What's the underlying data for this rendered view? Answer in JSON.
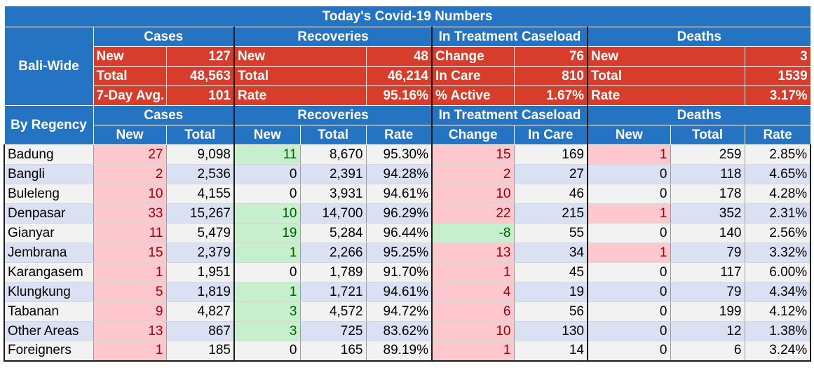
{
  "title": "Today's Covid-19 Numbers",
  "bali_wide": {
    "label": "Bali-Wide",
    "groups": [
      "Cases",
      "Recoveries",
      "In Treatment Caseload",
      "Deaths"
    ],
    "rows": [
      {
        "cases": [
          "New",
          "127"
        ],
        "recoveries": [
          "New",
          "48"
        ],
        "treatment": [
          "Change",
          "76"
        ],
        "deaths": [
          "New",
          "3"
        ]
      },
      {
        "cases": [
          "Total",
          "48,563"
        ],
        "recoveries": [
          "Total",
          "46,214"
        ],
        "treatment": [
          "In Care",
          "810"
        ],
        "deaths": [
          "Total",
          "1539"
        ]
      },
      {
        "cases": [
          "7-Day Avg.",
          "101"
        ],
        "recoveries": [
          "Rate",
          "95.16%"
        ],
        "treatment": [
          "% Active",
          "1.67%"
        ],
        "deaths": [
          "Rate",
          "3.17%"
        ]
      }
    ]
  },
  "by_regency": {
    "label": "By Regency",
    "groups": [
      "Cases",
      "Recoveries",
      "In Treatment Caseload",
      "Deaths"
    ],
    "columns": [
      "New",
      "Total",
      "New",
      "Total",
      "Rate",
      "Change",
      "In Care",
      "New",
      "Total",
      "Rate"
    ],
    "colors": {
      "pink_bg": "#ffc7ce",
      "pink_text": "#9c0006",
      "green_bg": "#c6efce",
      "green_text": "#006100",
      "header_blue": "#2573c3",
      "summary_red": "#d83c2b"
    },
    "rows": [
      {
        "name": "Badung",
        "values": [
          "27",
          "9,098",
          "11",
          "8,670",
          "95.30%",
          "15",
          "169",
          "1",
          "259",
          "2.85%"
        ]
      },
      {
        "name": "Bangli",
        "values": [
          "2",
          "2,536",
          "0",
          "2,391",
          "94.28%",
          "2",
          "27",
          "0",
          "118",
          "4.65%"
        ]
      },
      {
        "name": "Buleleng",
        "values": [
          "10",
          "4,155",
          "0",
          "3,931",
          "94.61%",
          "10",
          "46",
          "0",
          "178",
          "4.28%"
        ]
      },
      {
        "name": "Denpasar",
        "values": [
          "33",
          "15,267",
          "10",
          "14,700",
          "96.29%",
          "22",
          "215",
          "1",
          "352",
          "2.31%"
        ]
      },
      {
        "name": "Gianyar",
        "values": [
          "11",
          "5,479",
          "19",
          "5,284",
          "96.44%",
          "-8",
          "55",
          "0",
          "140",
          "2.56%"
        ]
      },
      {
        "name": "Jembrana",
        "values": [
          "15",
          "2,379",
          "1",
          "2,266",
          "95.25%",
          "13",
          "34",
          "1",
          "79",
          "3.32%"
        ]
      },
      {
        "name": "Karangasem",
        "values": [
          "1",
          "1,951",
          "0",
          "1,789",
          "91.70%",
          "1",
          "45",
          "0",
          "117",
          "6.00%"
        ]
      },
      {
        "name": "Klungkung",
        "values": [
          "5",
          "1,819",
          "1",
          "1,721",
          "94.61%",
          "4",
          "19",
          "0",
          "79",
          "4.34%"
        ]
      },
      {
        "name": "Tabanan",
        "values": [
          "9",
          "4,827",
          "3",
          "4,572",
          "94.72%",
          "6",
          "56",
          "0",
          "199",
          "4.12%"
        ]
      },
      {
        "name": "Other Areas",
        "values": [
          "13",
          "867",
          "3",
          "725",
          "83.62%",
          "10",
          "130",
          "0",
          "12",
          "1.38%"
        ]
      },
      {
        "name": "Foreigners",
        "values": [
          "1",
          "185",
          "0",
          "165",
          "89.19%",
          "1",
          "14",
          "0",
          "6",
          "3.24%"
        ]
      }
    ]
  }
}
